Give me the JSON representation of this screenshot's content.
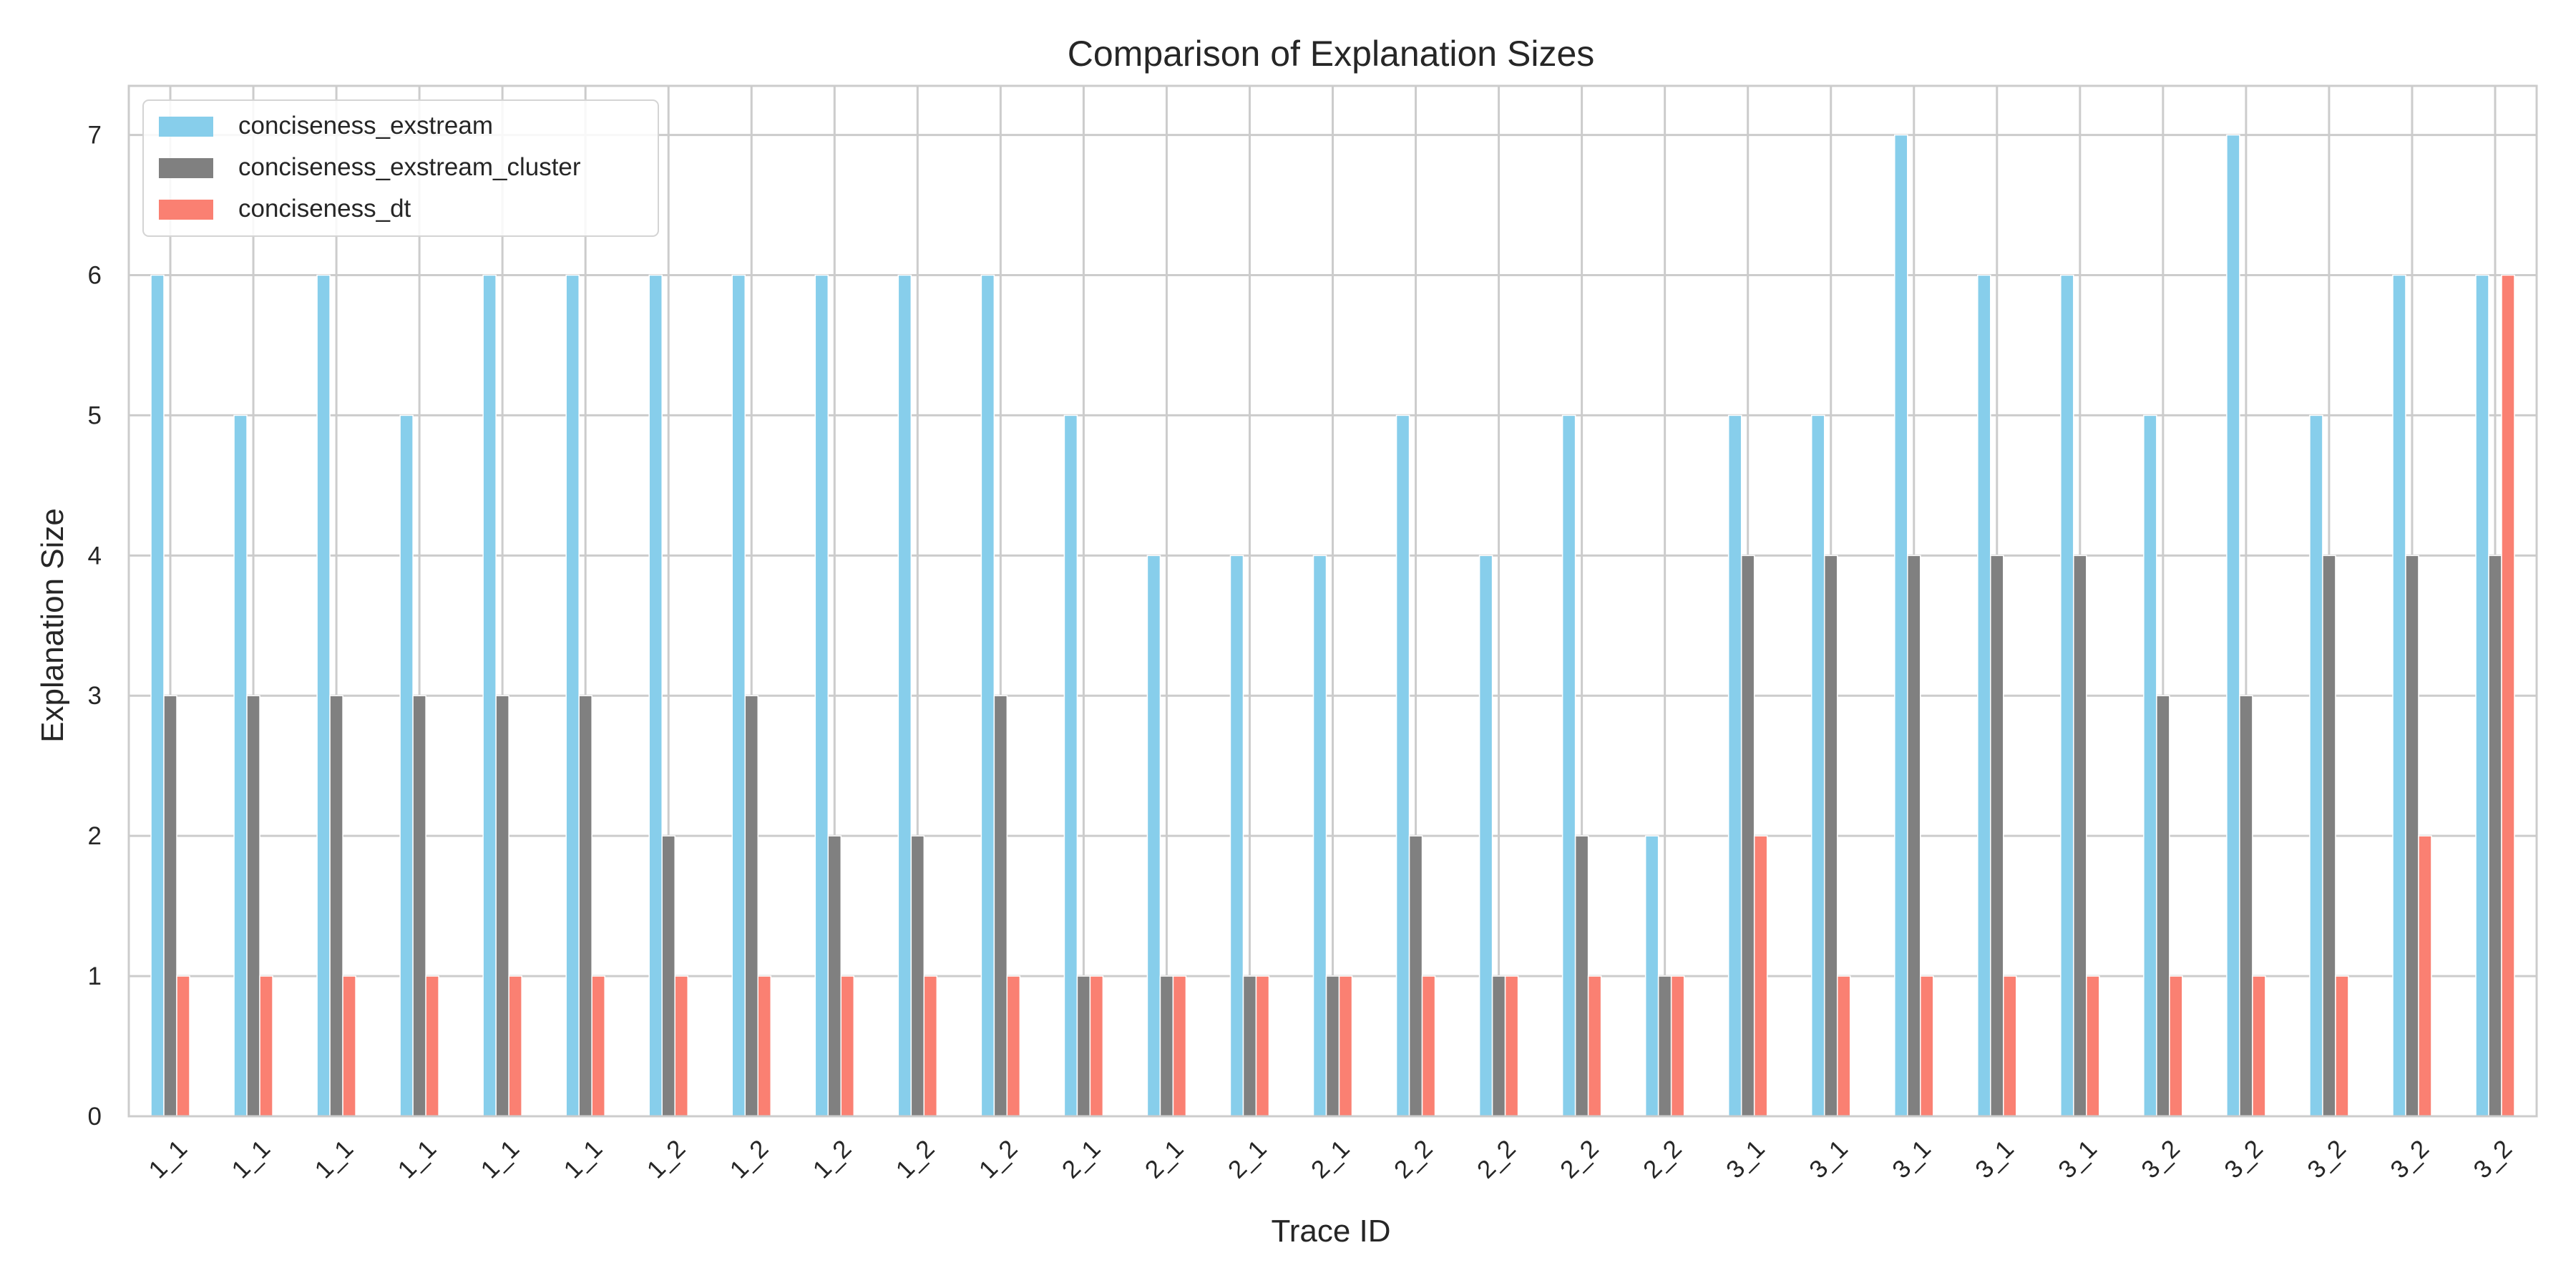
{
  "chart_data": {
    "type": "bar",
    "title": "Comparison of Explanation Sizes",
    "xlabel": "Trace ID",
    "ylabel": "Explanation Size",
    "ylim": [
      0,
      7.35
    ],
    "yticks": [
      0,
      1,
      2,
      3,
      4,
      5,
      6,
      7
    ],
    "grid": true,
    "legend_position": "top-left",
    "categories": [
      "1_1",
      "1_1",
      "1_1",
      "1_1",
      "1_1",
      "1_1",
      "1_2",
      "1_2",
      "1_2",
      "1_2",
      "1_2",
      "2_1",
      "2_1",
      "2_1",
      "2_1",
      "2_2",
      "2_2",
      "2_2",
      "2_2",
      "3_1",
      "3_1",
      "3_1",
      "3_1",
      "3_1",
      "3_2",
      "3_2",
      "3_2",
      "3_2",
      "3_2"
    ],
    "series": [
      {
        "name": "conciseness_exstream",
        "color": "#87ceeb",
        "values": [
          6,
          5,
          6,
          5,
          6,
          6,
          6,
          6,
          6,
          6,
          6,
          5,
          4,
          4,
          4,
          5,
          4,
          5,
          2,
          5,
          5,
          7,
          6,
          6,
          5,
          7,
          5,
          6,
          6
        ]
      },
      {
        "name": "conciseness_exstream_cluster",
        "color": "#808080",
        "values": [
          3,
          3,
          3,
          3,
          3,
          3,
          2,
          3,
          2,
          2,
          3,
          1,
          1,
          1,
          1,
          2,
          1,
          2,
          1,
          4,
          4,
          4,
          4,
          4,
          3,
          3,
          4,
          4,
          4
        ]
      },
      {
        "name": "conciseness_dt",
        "color": "#fa8072",
        "values": [
          1,
          1,
          1,
          1,
          1,
          1,
          1,
          1,
          1,
          1,
          1,
          1,
          1,
          1,
          1,
          1,
          1,
          1,
          1,
          2,
          1,
          1,
          1,
          1,
          1,
          1,
          1,
          2,
          6
        ]
      }
    ]
  }
}
